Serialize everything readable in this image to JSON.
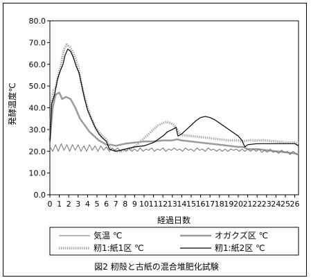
{
  "chart_data": {
    "type": "line",
    "xlabel": "経過日数",
    "ylabel": "発酵温度℃",
    "caption": "図2 籾殻と古紙の混合堆肥化試験",
    "xlim": [
      0,
      26
    ],
    "ylim": [
      0,
      80
    ],
    "x_ticks": [
      "0",
      "1",
      "2",
      "3",
      "4",
      "5",
      "6",
      "7",
      "8",
      "9",
      "10",
      "11",
      "12",
      "13",
      "14",
      "15",
      "16",
      "17",
      "18",
      "19",
      "20",
      "21",
      "22",
      "23",
      "24",
      "25",
      "26"
    ],
    "y_ticks": [
      "0.0",
      "10.0",
      "20.0",
      "30.0",
      "40.0",
      "50.0",
      "60.0",
      "70.0",
      "80.0"
    ],
    "legend_position": "bottom",
    "series": [
      {
        "name": "気温 ℃",
        "color": "#707070",
        "style": "thin-zigzag",
        "points": [
          [
            0,
            22
          ],
          [
            0.3,
            20
          ],
          [
            0.6,
            23
          ],
          [
            0.9,
            20
          ],
          [
            1.2,
            23.5
          ],
          [
            1.5,
            20.5
          ],
          [
            1.8,
            23
          ],
          [
            2.1,
            20
          ],
          [
            2.4,
            23
          ],
          [
            2.7,
            20.5
          ],
          [
            3,
            23
          ],
          [
            3.3,
            20
          ],
          [
            3.6,
            22.5
          ],
          [
            3.9,
            20
          ],
          [
            4.2,
            23
          ],
          [
            4.5,
            20.5
          ],
          [
            4.8,
            22.5
          ],
          [
            5.1,
            20
          ],
          [
            5.4,
            22.5
          ],
          [
            5.7,
            20.5
          ],
          [
            6,
            22
          ],
          [
            6.3,
            20
          ],
          [
            6.6,
            21.5
          ],
          [
            6.9,
            20.5
          ],
          [
            7.2,
            21.5
          ],
          [
            7.5,
            20
          ],
          [
            7.8,
            21
          ],
          [
            8.1,
            20
          ],
          [
            8.4,
            21.5
          ],
          [
            8.7,
            20
          ],
          [
            9,
            21
          ],
          [
            9.3,
            20
          ],
          [
            9.6,
            21.5
          ],
          [
            9.9,
            20
          ],
          [
            10.2,
            21
          ],
          [
            10.5,
            20.5
          ],
          [
            10.8,
            21.5
          ],
          [
            11.1,
            20
          ],
          [
            11.4,
            21
          ],
          [
            11.7,
            20.5
          ],
          [
            12,
            21.5
          ],
          [
            12.3,
            20
          ],
          [
            12.6,
            21
          ],
          [
            12.9,
            20.5
          ],
          [
            13.2,
            21.5
          ],
          [
            13.5,
            20.5
          ],
          [
            13.8,
            21
          ],
          [
            14.1,
            20
          ],
          [
            14.4,
            21.5
          ],
          [
            14.7,
            20.5
          ],
          [
            15,
            21
          ],
          [
            15.3,
            20
          ],
          [
            15.6,
            21.5
          ],
          [
            15.9,
            20.5
          ],
          [
            16.2,
            21
          ],
          [
            16.5,
            20
          ],
          [
            16.8,
            21.5
          ],
          [
            17.1,
            20.5
          ],
          [
            17.4,
            21
          ],
          [
            17.7,
            20
          ],
          [
            18,
            21
          ],
          [
            18.3,
            20
          ],
          [
            18.6,
            21
          ],
          [
            18.9,
            20
          ],
          [
            19.2,
            21
          ],
          [
            19.5,
            20.5
          ],
          [
            19.8,
            21
          ],
          [
            20.1,
            20
          ],
          [
            20.4,
            21
          ],
          [
            20.7,
            20
          ],
          [
            21,
            21
          ],
          [
            21.3,
            20
          ],
          [
            21.6,
            21
          ],
          [
            21.9,
            20
          ],
          [
            22.2,
            21
          ],
          [
            22.5,
            19.5
          ],
          [
            22.8,
            20.5
          ],
          [
            23.1,
            19.5
          ],
          [
            23.4,
            21
          ],
          [
            23.7,
            19.5
          ],
          [
            24,
            20
          ],
          [
            24.3,
            19
          ],
          [
            24.6,
            20.5
          ],
          [
            24.9,
            19.5
          ],
          [
            25.2,
            20
          ],
          [
            25.5,
            18.5
          ],
          [
            25.8,
            20
          ],
          [
            26.1,
            19
          ],
          [
            26.4,
            18
          ]
        ]
      },
      {
        "name": "オガクズ区 ℃",
        "color": "#9a9a9a",
        "style": "medium",
        "points": [
          [
            0,
            25
          ],
          [
            0.3,
            40
          ],
          [
            0.6,
            46
          ],
          [
            1,
            47
          ],
          [
            1.3,
            44
          ],
          [
            1.7,
            45
          ],
          [
            2.2,
            44
          ],
          [
            2.7,
            40
          ],
          [
            3.2,
            35
          ],
          [
            3.7,
            32
          ],
          [
            4.2,
            29
          ],
          [
            4.7,
            27
          ],
          [
            5.2,
            25
          ],
          [
            5.6,
            24
          ],
          [
            6,
            23
          ],
          [
            6.5,
            23
          ],
          [
            7,
            22.5
          ],
          [
            7.5,
            23
          ],
          [
            8,
            23.5
          ],
          [
            9,
            24
          ],
          [
            10,
            24.5
          ],
          [
            11,
            24.5
          ],
          [
            12,
            25
          ],
          [
            12.5,
            25
          ],
          [
            13,
            25
          ],
          [
            13.5,
            25.5
          ],
          [
            14,
            25
          ],
          [
            15,
            24.5
          ],
          [
            16,
            24
          ],
          [
            17,
            23.5
          ],
          [
            18,
            23
          ],
          [
            19,
            22.5
          ],
          [
            20,
            22
          ],
          [
            20.5,
            22
          ],
          [
            21,
            21
          ],
          [
            22,
            21
          ],
          [
            23,
            20.5
          ],
          [
            24,
            20
          ],
          [
            25,
            19.5
          ],
          [
            26,
            19
          ],
          [
            26.4,
            18.5
          ]
        ]
      },
      {
        "name": "籾1:紙1区 ℃",
        "color": "#aaaaaa",
        "style": "thick-dotted",
        "points": [
          [
            0,
            25
          ],
          [
            0.2,
            43
          ],
          [
            0.4,
            48
          ],
          [
            0.6,
            49
          ],
          [
            0.9,
            55
          ],
          [
            1.2,
            60
          ],
          [
            1.5,
            67
          ],
          [
            1.8,
            69
          ],
          [
            2.1,
            68
          ],
          [
            2.4,
            66
          ],
          [
            2.7,
            63
          ],
          [
            3,
            59
          ],
          [
            3.3,
            52
          ],
          [
            3.6,
            46
          ],
          [
            4,
            40
          ],
          [
            4.4,
            35
          ],
          [
            4.8,
            31
          ],
          [
            5.2,
            29
          ],
          [
            5.6,
            27
          ],
          [
            6,
            25.5
          ],
          [
            6.3,
            22
          ],
          [
            6.6,
            21
          ],
          [
            7,
            20
          ],
          [
            7.5,
            20
          ],
          [
            8,
            20.5
          ],
          [
            8.5,
            21
          ],
          [
            9,
            22
          ],
          [
            9.5,
            24
          ],
          [
            10,
            26
          ],
          [
            10.5,
            28
          ],
          [
            11,
            30
          ],
          [
            11.5,
            32
          ],
          [
            12,
            33
          ],
          [
            12.4,
            33.5
          ],
          [
            12.8,
            33
          ],
          [
            13.2,
            32
          ],
          [
            13.5,
            30
          ],
          [
            13.8,
            28
          ],
          [
            14,
            27.5
          ],
          [
            15,
            27
          ],
          [
            16,
            26.5
          ],
          [
            17,
            26
          ],
          [
            18,
            25.5
          ],
          [
            19,
            25
          ],
          [
            20,
            25
          ],
          [
            20.5,
            24.5
          ],
          [
            21,
            25
          ],
          [
            22,
            25
          ],
          [
            23,
            25
          ],
          [
            24,
            24.5
          ],
          [
            25,
            24
          ],
          [
            26,
            24
          ],
          [
            26.4,
            23.5
          ]
        ]
      },
      {
        "name": "籾1:紙2区 ℃",
        "color": "#000000",
        "style": "thin-solid",
        "points": [
          [
            0,
            24
          ],
          [
            0.2,
            42
          ],
          [
            0.5,
            46
          ],
          [
            0.8,
            53
          ],
          [
            1.1,
            57
          ],
          [
            1.4,
            60
          ],
          [
            1.6,
            64
          ],
          [
            1.9,
            67
          ],
          [
            2.2,
            66
          ],
          [
            2.5,
            63
          ],
          [
            2.8,
            59
          ],
          [
            3.1,
            56
          ],
          [
            3.4,
            50
          ],
          [
            3.7,
            44
          ],
          [
            4,
            39
          ],
          [
            4.4,
            35
          ],
          [
            4.8,
            31
          ],
          [
            5.2,
            28
          ],
          [
            5.6,
            26
          ],
          [
            6,
            24.5
          ],
          [
            6.3,
            21
          ],
          [
            6.6,
            20.5
          ],
          [
            7,
            20
          ],
          [
            7.5,
            20.5
          ],
          [
            8,
            21
          ],
          [
            9,
            22
          ],
          [
            10,
            22.5
          ],
          [
            11,
            24
          ],
          [
            12,
            27
          ],
          [
            12.5,
            29
          ],
          [
            13,
            30
          ],
          [
            13.4,
            31
          ],
          [
            13.6,
            27
          ],
          [
            14,
            28
          ],
          [
            14.5,
            30
          ],
          [
            15,
            32
          ],
          [
            15.5,
            34
          ],
          [
            16,
            35.5
          ],
          [
            16.5,
            36
          ],
          [
            17,
            35.5
          ],
          [
            17.5,
            34.5
          ],
          [
            18,
            33
          ],
          [
            19,
            30
          ],
          [
            19.5,
            28.5
          ],
          [
            20,
            27
          ],
          [
            20.4,
            25
          ],
          [
            20.7,
            22
          ],
          [
            21,
            23
          ],
          [
            22,
            23.5
          ],
          [
            23,
            23.5
          ],
          [
            24,
            23.5
          ],
          [
            25,
            23.5
          ],
          [
            26,
            23.5
          ],
          [
            26.4,
            22.5
          ]
        ]
      }
    ]
  }
}
